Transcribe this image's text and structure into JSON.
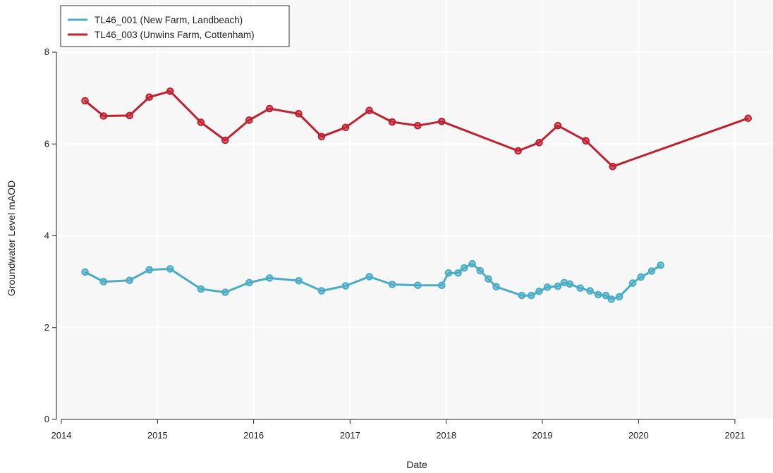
{
  "chart_data": {
    "type": "line",
    "xlabel": "Date",
    "ylabel": "Groundwater Level mAOD",
    "xlim": [
      "2014-01-01",
      "2021-05-01"
    ],
    "ylim": [
      0,
      9
    ],
    "x_ticks": [
      "2014",
      "2015",
      "2016",
      "2017",
      "2018",
      "2019",
      "2020",
      "2021"
    ],
    "y_ticks": [
      "0",
      "2",
      "4",
      "6",
      "8"
    ],
    "grid": true,
    "background": "#f7f7f7",
    "legend_position": "top-left",
    "series": [
      {
        "name": "TL46_001 (New Farm, Landbeach)",
        "color": "#4bacc6",
        "points": [
          [
            "2014-04-01",
            3.21
          ],
          [
            "2014-06-10",
            3.0
          ],
          [
            "2014-09-17",
            3.03
          ],
          [
            "2014-12-01",
            3.26
          ],
          [
            "2015-02-18",
            3.28
          ],
          [
            "2015-06-15",
            2.84
          ],
          [
            "2015-09-15",
            2.77
          ],
          [
            "2015-12-15",
            2.98
          ],
          [
            "2016-03-01",
            3.08
          ],
          [
            "2016-06-20",
            3.02
          ],
          [
            "2016-09-15",
            2.8
          ],
          [
            "2016-12-15",
            2.91
          ],
          [
            "2017-03-15",
            3.11
          ],
          [
            "2017-06-10",
            2.94
          ],
          [
            "2017-09-15",
            2.92
          ],
          [
            "2017-12-15",
            2.92
          ],
          [
            "2018-01-10",
            3.19
          ],
          [
            "2018-02-15",
            3.19
          ],
          [
            "2018-03-10",
            3.3
          ],
          [
            "2018-04-10",
            3.39
          ],
          [
            "2018-05-10",
            3.24
          ],
          [
            "2018-06-10",
            3.06
          ],
          [
            "2018-07-10",
            2.89
          ],
          [
            "2018-10-15",
            2.7
          ],
          [
            "2018-11-20",
            2.7
          ],
          [
            "2018-12-20",
            2.79
          ],
          [
            "2019-01-20",
            2.88
          ],
          [
            "2019-03-01",
            2.9
          ],
          [
            "2019-03-25",
            2.98
          ],
          [
            "2019-04-15",
            2.95
          ],
          [
            "2019-05-25",
            2.86
          ],
          [
            "2019-07-01",
            2.8
          ],
          [
            "2019-08-01",
            2.72
          ],
          [
            "2019-08-30",
            2.7
          ],
          [
            "2019-09-20",
            2.62
          ],
          [
            "2019-10-20",
            2.67
          ],
          [
            "2019-12-10",
            2.97
          ],
          [
            "2020-01-10",
            3.1
          ],
          [
            "2020-02-20",
            3.23
          ],
          [
            "2020-03-25",
            3.36
          ]
        ]
      },
      {
        "name": "TL46_003 (Unwins Farm, Cottenham)",
        "color": "#c0212f",
        "points": [
          [
            "2014-04-01",
            6.94
          ],
          [
            "2014-06-10",
            6.61
          ],
          [
            "2014-09-17",
            6.62
          ],
          [
            "2014-12-01",
            7.02
          ],
          [
            "2015-02-18",
            7.15
          ],
          [
            "2015-06-15",
            6.47
          ],
          [
            "2015-09-15",
            6.08
          ],
          [
            "2015-12-15",
            6.52
          ],
          [
            "2016-03-01",
            6.77
          ],
          [
            "2016-06-20",
            6.66
          ],
          [
            "2016-09-15",
            6.16
          ],
          [
            "2016-12-15",
            6.36
          ],
          [
            "2017-03-15",
            6.73
          ],
          [
            "2017-06-10",
            6.48
          ],
          [
            "2017-09-15",
            6.4
          ],
          [
            "2017-12-15",
            6.49
          ],
          [
            "2018-10-01",
            5.85
          ],
          [
            "2018-12-20",
            6.03
          ],
          [
            "2019-03-01",
            6.4
          ],
          [
            "2019-06-15",
            6.07
          ],
          [
            "2019-09-25",
            5.51
          ],
          [
            "2021-02-20",
            6.56
          ]
        ]
      }
    ]
  }
}
